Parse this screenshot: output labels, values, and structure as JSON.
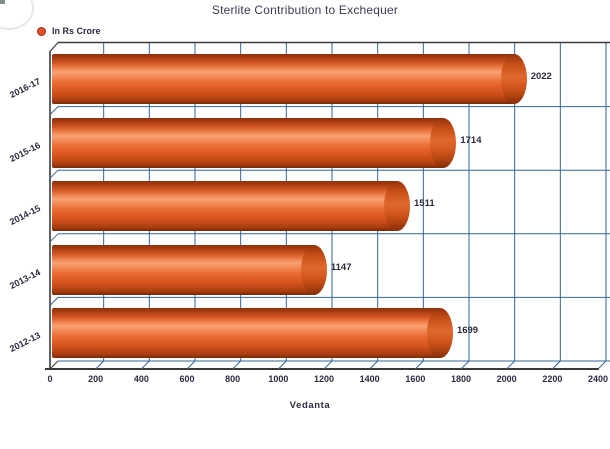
{
  "chart_data": {
    "type": "bar",
    "orientation": "horizontal",
    "title": "Sterlite Contribution to Exchequer",
    "legend_label": "In Rs Crore",
    "legend_position": "top-left",
    "xlabel": "Vedanta",
    "categories": [
      "2016-17",
      "2015-16",
      "2014-15",
      "2013-14",
      "2012-13"
    ],
    "values": [
      2022,
      1714,
      1511,
      1147,
      1699
    ],
    "xlim": [
      0,
      2400
    ],
    "xticks": [
      0,
      200,
      400,
      600,
      800,
      1000,
      1200,
      1400,
      1600,
      1800,
      2000,
      2200,
      2400
    ],
    "grid": true,
    "bar_color": "#e2512b",
    "grid_color": "#336699",
    "axis_color": "#3a3a3a",
    "text_color": "#2b2b40",
    "legend_dot_color": "#e2512b"
  }
}
